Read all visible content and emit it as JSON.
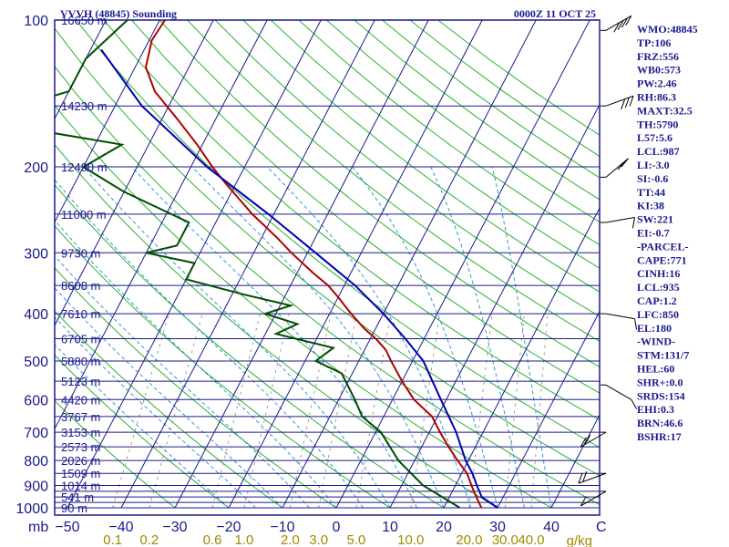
{
  "header": {
    "station_title": "VVVH (48845) Sounding",
    "valid_time": "0000Z 11 OCT 25"
  },
  "chart_data": {
    "type": "line",
    "title": "VVVH (48845) Sounding",
    "xlabel": "",
    "ylabel": "mb",
    "pressure_levels": [
      100,
      200,
      300,
      400,
      500,
      600,
      700,
      800,
      900,
      1000
    ],
    "isobars": [
      100,
      150,
      200,
      250,
      300,
      350,
      400,
      450,
      500,
      550,
      600,
      650,
      700,
      750,
      800,
      850,
      900,
      925,
      950,
      975,
      1000
    ],
    "heights": [
      {
        "p": 100,
        "label": "16650 m"
      },
      {
        "p": 150,
        "label": "14230 m"
      },
      {
        "p": 200,
        "label": "12490 m"
      },
      {
        "p": 250,
        "label": "11000 m"
      },
      {
        "p": 300,
        "label": "9730 m"
      },
      {
        "p": 350,
        "label": "8608 m"
      },
      {
        "p": 400,
        "label": "7610 m"
      },
      {
        "p": 450,
        "label": "6705 m"
      },
      {
        "p": 500,
        "label": "5880 m"
      },
      {
        "p": 550,
        "label": "5123 m"
      },
      {
        "p": 600,
        "label": "4420 m"
      },
      {
        "p": 650,
        "label": "3767 m"
      },
      {
        "p": 700,
        "label": "3153 m"
      },
      {
        "p": 750,
        "label": "2573 m"
      },
      {
        "p": 800,
        "label": "2026 m"
      },
      {
        "p": 850,
        "label": "1509 m"
      },
      {
        "p": 900,
        "label": "1014 m"
      },
      {
        "p": 950,
        "label": "541 m"
      },
      {
        "p": 1000,
        "label": "90 m"
      }
    ],
    "temperature_ticks": [
      -50,
      -40,
      -30,
      -20,
      -10,
      0,
      10,
      20,
      30,
      40
    ],
    "temperature_unit": "C",
    "mixing_ratio_ticks": [
      "0.1",
      "0.2",
      "0.6",
      "1.0",
      "2.0",
      "3.0",
      "5.0",
      "10.0",
      "20.0",
      "30.0",
      "40.0"
    ],
    "mixing_ratio_values": [
      0.1,
      0.2,
      0.6,
      1.0,
      2.0,
      3.0,
      5.0,
      10.0,
      20.0,
      30.0,
      40.0
    ],
    "mixing_ratio_unit": "g/kg",
    "series": [
      {
        "color": "#b00000",
        "points": [
          {
            "p": 100,
            "t": -79
          },
          {
            "p": 110,
            "t": -79.5
          },
          {
            "p": 125,
            "t": -78
          },
          {
            "p": 140,
            "t": -74
          },
          {
            "p": 160,
            "t": -67
          },
          {
            "p": 180,
            "t": -61
          },
          {
            "p": 200,
            "t": -56
          },
          {
            "p": 220,
            "t": -51
          },
          {
            "p": 250,
            "t": -44
          },
          {
            "p": 280,
            "t": -37
          },
          {
            "p": 300,
            "t": -33
          },
          {
            "p": 330,
            "t": -27
          },
          {
            "p": 350,
            "t": -23
          },
          {
            "p": 370,
            "t": -20
          },
          {
            "p": 400,
            "t": -16
          },
          {
            "p": 430,
            "t": -12
          },
          {
            "p": 450,
            "t": -9
          },
          {
            "p": 475,
            "t": -6
          },
          {
            "p": 500,
            "t": -4
          },
          {
            "p": 550,
            "t": 0
          },
          {
            "p": 600,
            "t": 4
          },
          {
            "p": 650,
            "t": 9
          },
          {
            "p": 700,
            "t": 12
          },
          {
            "p": 750,
            "t": 15
          },
          {
            "p": 800,
            "t": 18
          },
          {
            "p": 850,
            "t": 21
          },
          {
            "p": 900,
            "t": 23
          },
          {
            "p": 950,
            "t": 25
          },
          {
            "p": 1000,
            "t": 27
          }
        ]
      },
      {
        "color": "#004d00",
        "points": [
          {
            "p": 100,
            "t": -86
          },
          {
            "p": 120,
            "t": -90
          },
          {
            "p": 140,
            "t": -90
          },
          {
            "p": 160,
            "t": -105
          },
          {
            "p": 180,
            "t": -75
          },
          {
            "p": 200,
            "t": -80
          },
          {
            "p": 225,
            "t": -70
          },
          {
            "p": 260,
            "t": -55
          },
          {
            "p": 290,
            "t": -55
          },
          {
            "p": 300,
            "t": -60
          },
          {
            "p": 315,
            "t": -50
          },
          {
            "p": 340,
            "t": -50
          },
          {
            "p": 365,
            "t": -38
          },
          {
            "p": 385,
            "t": -28
          },
          {
            "p": 400,
            "t": -32
          },
          {
            "p": 420,
            "t": -25
          },
          {
            "p": 440,
            "t": -28
          },
          {
            "p": 470,
            "t": -16
          },
          {
            "p": 500,
            "t": -18
          },
          {
            "p": 530,
            "t": -12
          },
          {
            "p": 600,
            "t": -7
          },
          {
            "p": 650,
            "t": -4
          },
          {
            "p": 700,
            "t": 1
          },
          {
            "p": 800,
            "t": 7
          },
          {
            "p": 900,
            "t": 14
          },
          {
            "p": 1000,
            "t": 23
          }
        ]
      },
      {
        "color": "#0000b4",
        "points": [
          {
            "p": 115,
            "t": -88
          },
          {
            "p": 150,
            "t": -75
          },
          {
            "p": 200,
            "t": -57
          },
          {
            "p": 250,
            "t": -41
          },
          {
            "p": 300,
            "t": -28.5
          },
          {
            "p": 350,
            "t": -18
          },
          {
            "p": 400,
            "t": -10
          },
          {
            "p": 450,
            "t": -3.5
          },
          {
            "p": 500,
            "t": 2
          },
          {
            "p": 600,
            "t": 9
          },
          {
            "p": 700,
            "t": 15
          },
          {
            "p": 800,
            "t": 19.5
          },
          {
            "p": 850,
            "t": 22
          },
          {
            "p": 900,
            "t": 24
          },
          {
            "p": 950,
            "t": 26
          },
          {
            "p": 1000,
            "t": 30
          }
        ]
      }
    ],
    "wind_barbs": [
      {
        "p": 105,
        "dir": 300,
        "kt": 35
      },
      {
        "p": 150,
        "dir": 290,
        "kt": 25
      },
      {
        "p": 210,
        "dir": 310,
        "kt": 15
      },
      {
        "p": 260,
        "dir": 280,
        "kt": 10
      },
      {
        "p": 400,
        "dir": 260,
        "kt": 10
      },
      {
        "p": 560,
        "dir": 240,
        "kt": 10
      },
      {
        "p": 700,
        "dir": 120,
        "kt": 15
      },
      {
        "p": 850,
        "dir": 110,
        "kt": 15
      },
      {
        "p": 925,
        "dir": 120,
        "kt": 10
      }
    ]
  },
  "indices": [
    "WMO:48845",
    "TP:106",
    "FRZ:556",
    "WB0:573",
    "PW:2.46",
    "RH:86.3",
    "MAXT:32.5",
    "TH:5790",
    "L57:5.6",
    "LCL:987",
    "LI:-3.0",
    "SI:-0.6",
    "TT:44",
    "KI:38",
    "SW:221",
    "EI:-0.7",
    "-PARCEL-",
    "CAPE:771",
    "CINH:16",
    "LCL:935",
    "CAP:1.2",
    "LFC:850",
    "EL:180",
    "-WIND-",
    "STM:131/7",
    "HEL:60",
    "SHR+:0.0",
    "SRDS:154",
    "EHI:0.3",
    "BRN:46.6",
    "BSHR:17"
  ],
  "colors": {
    "frame": "#1a1a8c",
    "dry_adiabat": "#2fb02f",
    "moist_adiabat": "#3399cc",
    "mixing_ratio": "#888866",
    "temperature": "#b00000",
    "dewpoint": "#004d00",
    "parcel": "#0000b4"
  }
}
